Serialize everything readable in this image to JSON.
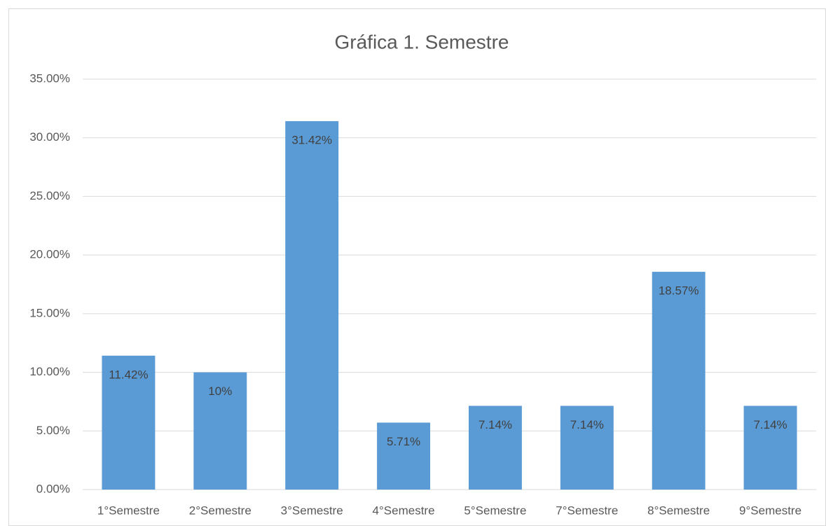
{
  "chart_data": {
    "type": "bar",
    "title": "Gráfica 1. Semestre",
    "categories": [
      "1°Semestre",
      "2°Semestre",
      "3°Semestre",
      "4°Semestre",
      "5°Semestre",
      "7°Semestre",
      "8°Semestre",
      "9°Semestre"
    ],
    "values": [
      11.42,
      10,
      31.42,
      5.71,
      7.14,
      7.14,
      18.57,
      7.14
    ],
    "value_labels": [
      "11.42%",
      "10%",
      "31.42%",
      "5.71%",
      "7.14%",
      "7.14%",
      "18.57%",
      "7.14%"
    ],
    "color": "#5b9bd5",
    "ylim": [
      0,
      35
    ],
    "yticks": [
      {
        "value": 0,
        "label": "0.00%"
      },
      {
        "value": 5,
        "label": "5.00%"
      },
      {
        "value": 10,
        "label": "10.00%"
      },
      {
        "value": 15,
        "label": "15.00%"
      },
      {
        "value": 20,
        "label": "20.00%"
      },
      {
        "value": 25,
        "label": "25.00%"
      },
      {
        "value": 30,
        "label": "30.00%"
      },
      {
        "value": 35,
        "label": "35.00%"
      }
    ],
    "grid": true
  }
}
